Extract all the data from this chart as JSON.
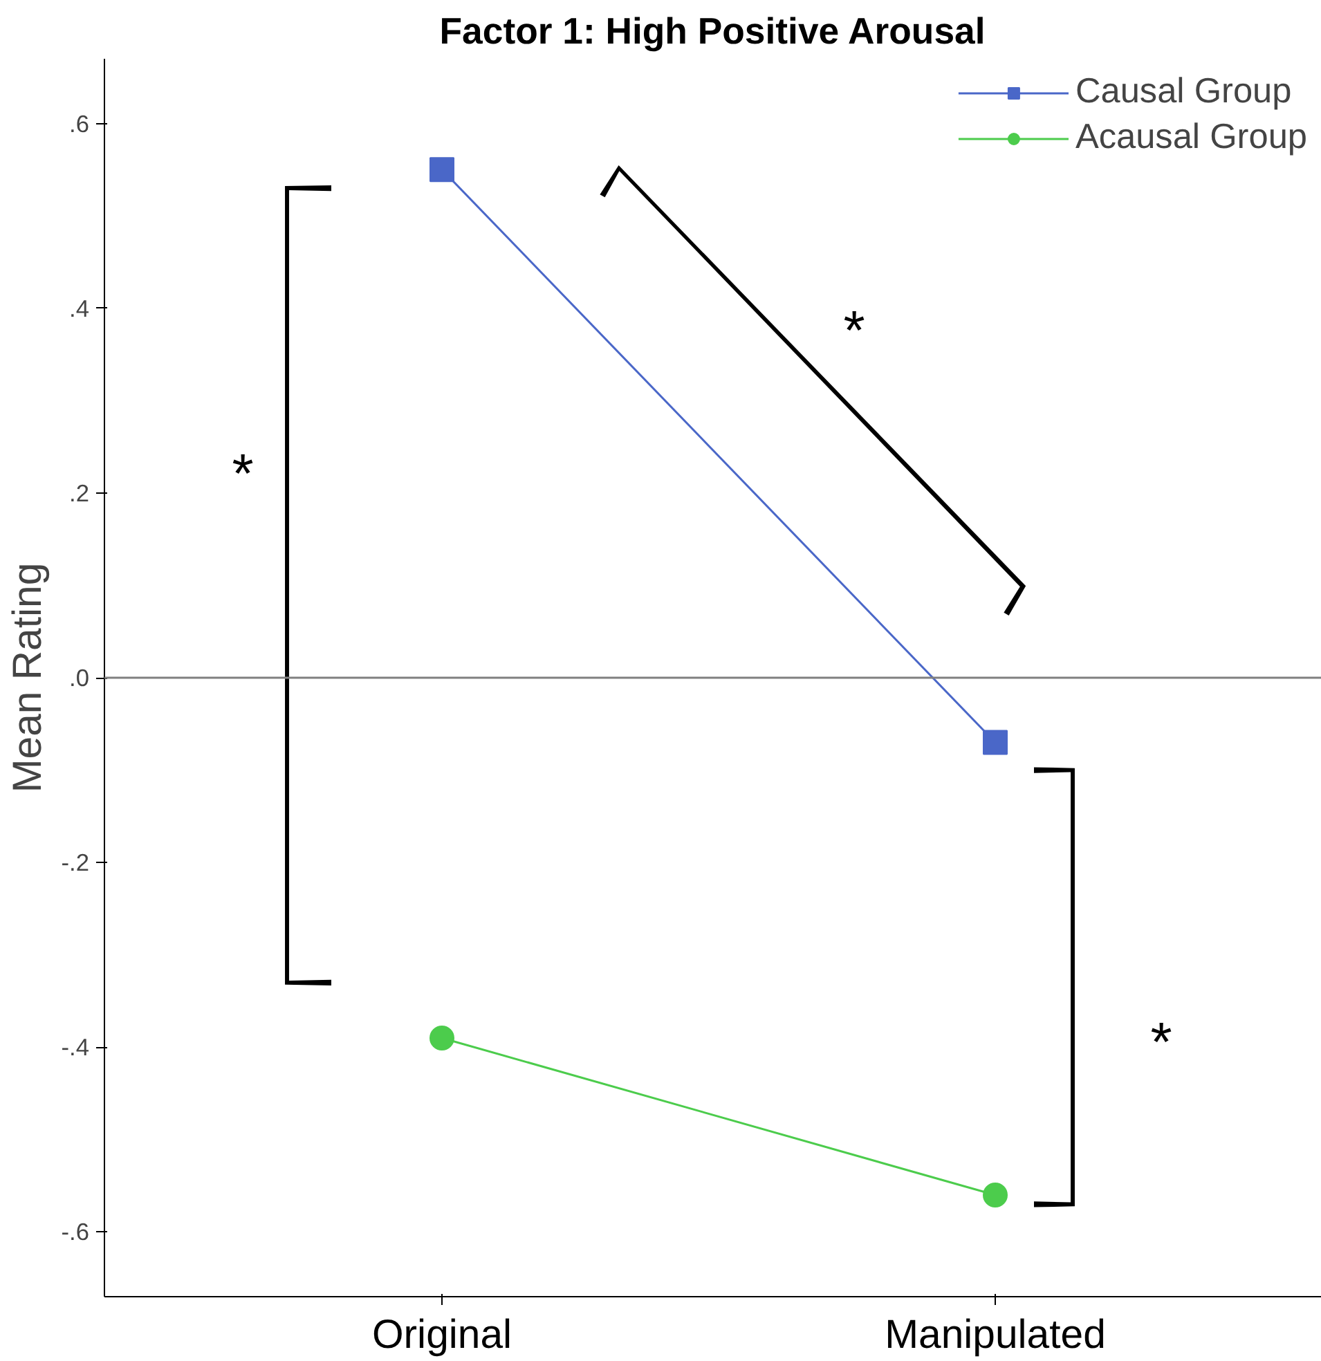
{
  "chart_data": {
    "type": "line",
    "title": "Factor 1: High Positive Arousal",
    "ylabel": "Mean Rating",
    "categories": [
      "Original",
      "Manipulated"
    ],
    "series": [
      {
        "name": "Causal Group",
        "color": "#4a67c8",
        "marker": "square",
        "values": [
          0.55,
          -0.07
        ]
      },
      {
        "name": "Acausal Group",
        "color": "#4ccc4c",
        "marker": "circle",
        "values": [
          -0.39,
          -0.56
        ]
      }
    ],
    "ylim": [
      -0.67,
      0.67
    ],
    "yticks": [
      {
        "value": -0.6,
        "label": "-.6"
      },
      {
        "value": -0.4,
        "label": "-.4"
      },
      {
        "value": -0.2,
        "label": "-.2"
      },
      {
        "value": 0,
        "label": ".0"
      },
      {
        "value": 0.2,
        "label": ".2"
      },
      {
        "value": 0.4,
        "label": ".4"
      },
      {
        "value": 0.6,
        "label": ".6"
      }
    ],
    "ref_lines": [
      {
        "axis": "y",
        "value": 0,
        "color": "#808080"
      }
    ],
    "annotations": [
      "*",
      "*",
      "*"
    ],
    "legend": "top right",
    "grid": false
  }
}
